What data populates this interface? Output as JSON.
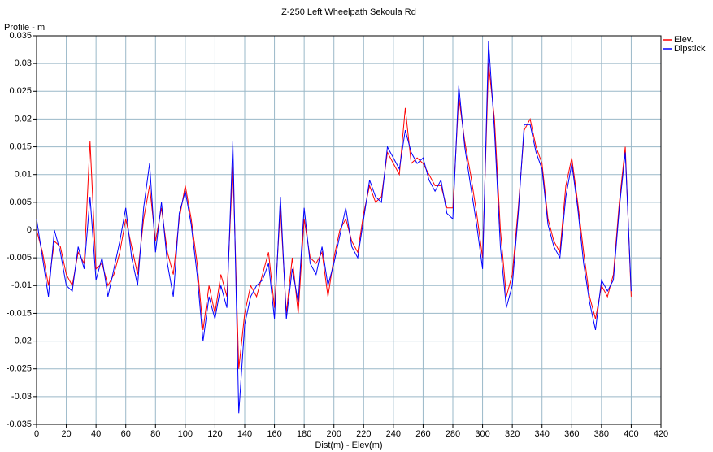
{
  "chart_data": {
    "type": "line",
    "title": "Z-250 Left Wheelpath Sekoula Rd",
    "y_label": "Profile - m",
    "x_label": "Dist(m) - Elev(m)",
    "x": [
      0,
      4,
      8,
      12,
      16,
      20,
      24,
      28,
      32,
      36,
      40,
      44,
      48,
      52,
      56,
      60,
      64,
      68,
      72,
      76,
      80,
      84,
      88,
      92,
      96,
      100,
      104,
      108,
      112,
      116,
      120,
      124,
      128,
      132,
      136,
      140,
      144,
      148,
      152,
      156,
      160,
      164,
      168,
      172,
      176,
      180,
      184,
      188,
      192,
      196,
      200,
      204,
      208,
      212,
      216,
      220,
      224,
      228,
      232,
      236,
      240,
      244,
      248,
      252,
      256,
      260,
      264,
      268,
      272,
      276,
      280,
      284,
      288,
      292,
      296,
      300,
      304,
      308,
      312,
      316,
      320,
      324,
      328,
      332,
      336,
      340,
      344,
      348,
      352,
      356,
      360,
      364,
      368,
      372,
      376,
      380,
      384,
      388,
      392,
      396,
      400
    ],
    "series": [
      {
        "name": "Elev.",
        "color": "#ff0000",
        "values": [
          0,
          -0.004,
          -0.01,
          -0.002,
          -0.003,
          -0.008,
          -0.01,
          -0.004,
          -0.006,
          0.016,
          -0.007,
          -0.006,
          -0.01,
          -0.008,
          -0.004,
          0.002,
          -0.003,
          -0.008,
          0.002,
          0.008,
          -0.002,
          0.004,
          -0.004,
          -0.008,
          0.002,
          0.008,
          0.002,
          -0.006,
          -0.018,
          -0.01,
          -0.015,
          -0.008,
          -0.012,
          0.012,
          -0.025,
          -0.015,
          -0.01,
          -0.012,
          -0.008,
          -0.004,
          -0.014,
          0.004,
          -0.015,
          -0.005,
          -0.015,
          0.002,
          -0.005,
          -0.006,
          -0.004,
          -0.012,
          -0.005,
          0,
          0.002,
          -0.002,
          -0.004,
          0.003,
          0.008,
          0.005,
          0.006,
          0.014,
          0.012,
          0.01,
          0.022,
          0.012,
          0.013,
          0.012,
          0.01,
          0.008,
          0.008,
          0.004,
          0.004,
          0.024,
          0.016,
          0.01,
          0.003,
          -0.005,
          0.03,
          0.02,
          0,
          -0.012,
          -0.008,
          0.004,
          0.018,
          0.02,
          0.015,
          0.012,
          0.002,
          -0.002,
          -0.004,
          0.008,
          0.013,
          0.005,
          -0.004,
          -0.012,
          -0.016,
          -0.01,
          -0.012,
          -0.008,
          0.005,
          0.015,
          -0.012
        ]
      },
      {
        "name": "Dipstick",
        "color": "#0000ff",
        "values": [
          0.002,
          -0.005,
          -0.012,
          0,
          -0.004,
          -0.01,
          -0.011,
          -0.003,
          -0.007,
          0.006,
          -0.009,
          -0.005,
          -0.012,
          -0.007,
          -0.002,
          0.004,
          -0.005,
          -0.01,
          0.004,
          0.012,
          -0.004,
          0.005,
          -0.006,
          -0.012,
          0.003,
          0.007,
          0.001,
          -0.008,
          -0.02,
          -0.012,
          -0.016,
          -0.01,
          -0.014,
          0.016,
          -0.033,
          -0.017,
          -0.012,
          -0.01,
          -0.009,
          -0.006,
          -0.016,
          0.006,
          -0.016,
          -0.007,
          -0.013,
          0.004,
          -0.006,
          -0.008,
          -0.003,
          -0.01,
          -0.006,
          -0.001,
          0.004,
          -0.003,
          -0.005,
          0.002,
          0.009,
          0.006,
          0.005,
          0.015,
          0.013,
          0.011,
          0.018,
          0.014,
          0.012,
          0.013,
          0.009,
          0.007,
          0.009,
          0.003,
          0.002,
          0.026,
          0.015,
          0.008,
          0.001,
          -0.007,
          0.034,
          0.018,
          -0.003,
          -0.014,
          -0.01,
          0.003,
          0.019,
          0.019,
          0.014,
          0.011,
          0.001,
          -0.003,
          -0.005,
          0.006,
          0.012,
          0.004,
          -0.006,
          -0.013,
          -0.018,
          -0.009,
          -0.011,
          -0.009,
          0.004,
          0.014,
          -0.011
        ]
      }
    ],
    "xlim": [
      0,
      420
    ],
    "xticks": [
      0,
      20,
      40,
      60,
      80,
      100,
      120,
      140,
      160,
      180,
      200,
      220,
      240,
      260,
      280,
      300,
      320,
      340,
      360,
      380,
      400,
      420
    ],
    "ylim": [
      -0.035,
      0.035
    ],
    "yticks": [
      -0.035,
      -0.03,
      -0.025,
      -0.02,
      -0.015,
      -0.01,
      -0.005,
      0,
      0.005,
      0.01,
      0.015,
      0.02,
      0.025,
      0.03,
      0.035
    ],
    "grid": true,
    "legend": "right"
  }
}
